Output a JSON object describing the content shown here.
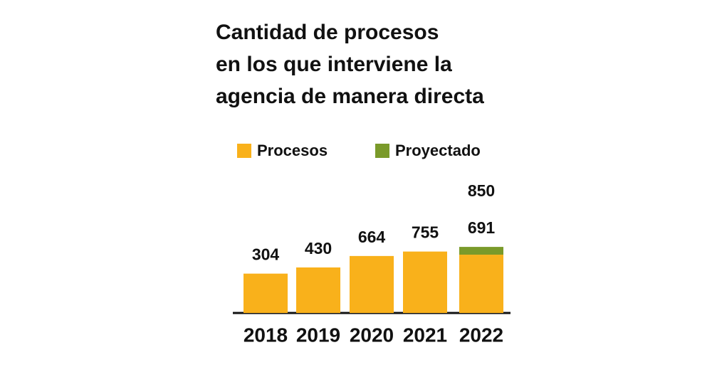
{
  "chart_data": {
    "type": "stacked_bar",
    "title": [
      "Cantidad de procesos",
      "en los que interviene la",
      "agencia de manera directa"
    ],
    "categories": [
      "2018",
      "2019",
      "2020",
      "2021",
      "2022"
    ],
    "series": [
      {
        "name": "Procesos",
        "color": "#f9b11b",
        "values": [
          304,
          430,
          664,
          755,
          691
        ]
      },
      {
        "name": "Proyectado",
        "color": "#7a9a2a",
        "values": [
          null,
          null,
          null,
          null,
          159
        ]
      }
    ],
    "totals": [
      null,
      null,
      null,
      null,
      850
    ],
    "ylim": [
      -500,
      1200
    ]
  }
}
